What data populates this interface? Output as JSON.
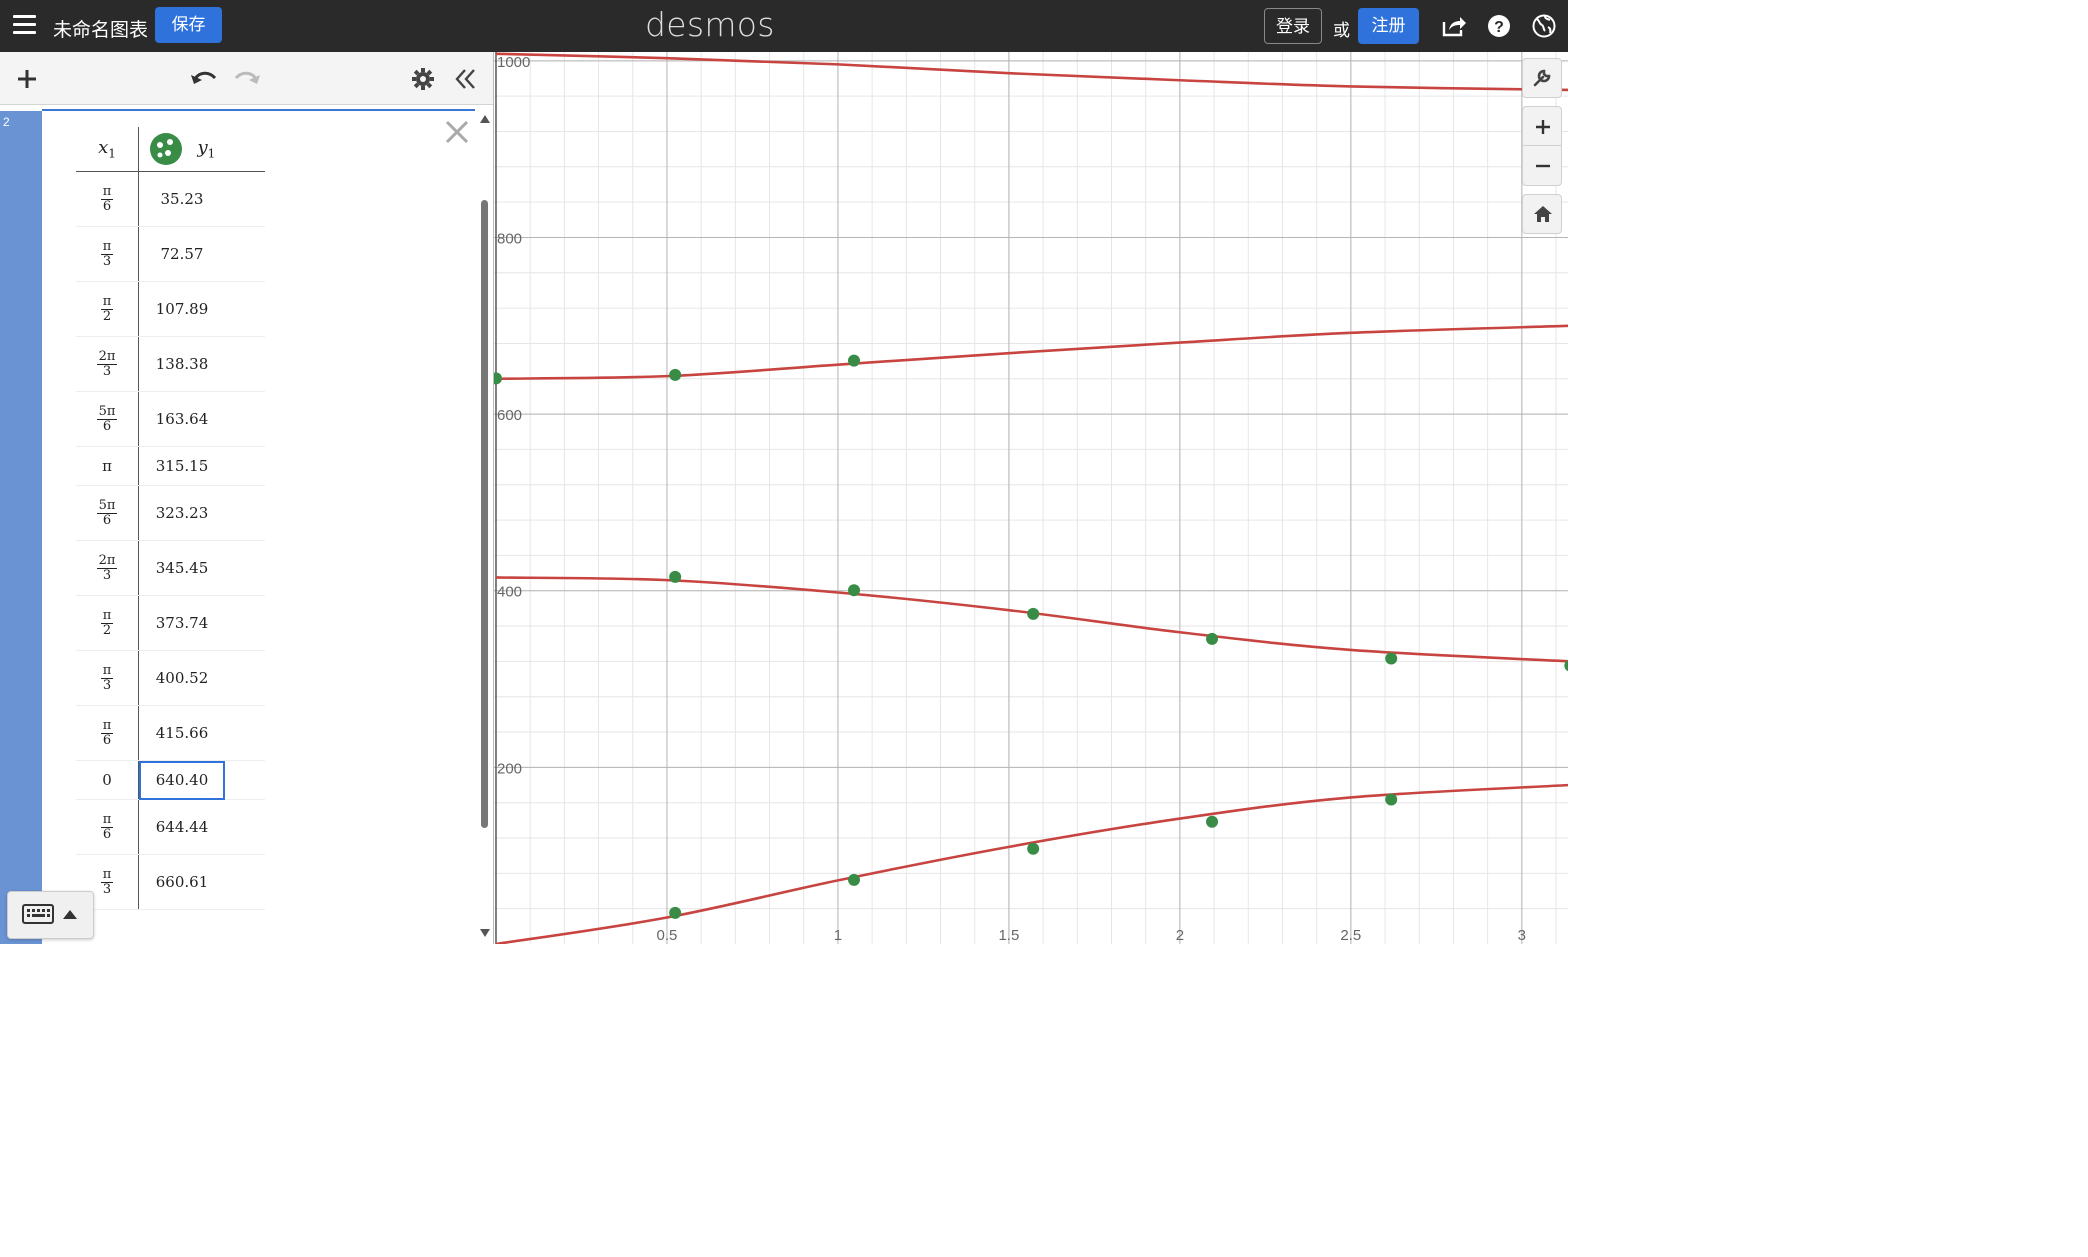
{
  "header": {
    "graph_title": "未命名图表",
    "save_label": "保存",
    "logo": "desmos",
    "login_label": "登录",
    "or_text": "或",
    "signup_label": "注册",
    "icons": [
      "menu-icon",
      "share-icon",
      "help-icon",
      "language-globe-icon"
    ]
  },
  "toolbar": {
    "icons": [
      "add-icon",
      "undo-icon",
      "redo-icon",
      "settings-gear-icon",
      "collapse-panel-icon"
    ]
  },
  "expression": {
    "index": "2",
    "table": {
      "header_x": "x",
      "header_x_sub": "1",
      "header_y": "y",
      "header_y_sub": "1",
      "rows": [
        {
          "x_num": "π",
          "x_den": "6",
          "y": "35.23"
        },
        {
          "x_num": "π",
          "x_den": "3",
          "y": "72.57"
        },
        {
          "x_num": "π",
          "x_den": "2",
          "y": "107.89"
        },
        {
          "x_num": "2π",
          "x_den": "3",
          "y": "138.38"
        },
        {
          "x_num": "5π",
          "x_den": "6",
          "y": "163.64"
        },
        {
          "x_plain": "π",
          "y": "315.15"
        },
        {
          "x_num": "5π",
          "x_den": "6",
          "y": "323.23"
        },
        {
          "x_num": "2π",
          "x_den": "3",
          "y": "345.45"
        },
        {
          "x_num": "π",
          "x_den": "2",
          "y": "373.74"
        },
        {
          "x_num": "π",
          "x_den": "3",
          "y": "400.52"
        },
        {
          "x_num": "π",
          "x_den": "6",
          "y": "415.66"
        },
        {
          "x_plain": "0",
          "y": "640.40",
          "selected": true
        },
        {
          "x_num": "π",
          "x_den": "6",
          "y": "644.44"
        },
        {
          "x_num": "π",
          "x_den": "3",
          "y": "660.61"
        }
      ]
    }
  },
  "colors": {
    "topbar": "#2a2a2a",
    "accent_blue": "#2f72dc",
    "curve_red": "#c74440",
    "point_green": "#388c46",
    "gutter_blue": "#6a93d4"
  },
  "graph": {
    "x_ticks": [
      "0.5",
      "1",
      "1.5",
      "2",
      "2.5",
      "3"
    ],
    "y_ticks": [
      "1000",
      "800",
      "600",
      "400",
      "200"
    ],
    "x_range": [
      -0.5,
      3.14
    ],
    "y_range": [
      0,
      1000
    ],
    "controls": [
      "wrench-icon",
      "zoom-in-icon",
      "zoom-out-icon",
      "home-icon"
    ]
  },
  "chart_data": {
    "type": "scatter",
    "xlabel": "",
    "ylabel": "",
    "xlim": [
      0,
      3.14
    ],
    "ylim": [
      0,
      1000
    ],
    "grid": true,
    "points": [
      [
        0,
        640.4
      ],
      [
        0.524,
        644.44
      ],
      [
        1.047,
        660.61
      ],
      [
        0.524,
        415.66
      ],
      [
        1.047,
        400.52
      ],
      [
        1.571,
        373.74
      ],
      [
        2.094,
        345.45
      ],
      [
        2.618,
        323.23
      ],
      [
        3.142,
        315.15
      ],
      [
        0.524,
        35.23
      ],
      [
        1.047,
        72.57
      ],
      [
        1.571,
        107.89
      ],
      [
        2.094,
        138.38
      ],
      [
        2.618,
        163.64
      ]
    ],
    "curves": [
      {
        "description": "top curve",
        "x": [
          0,
          0.5,
          1,
          1.5,
          2,
          2.5,
          3.14
        ],
        "y": [
          1008,
          1003,
          996,
          986,
          978,
          971,
          967
        ]
      },
      {
        "description": "upper-middle curve",
        "x": [
          0,
          0.5,
          1,
          1.5,
          2,
          2.5,
          3.14
        ],
        "y": [
          640,
          643,
          656,
          669,
          681,
          692,
          700
        ]
      },
      {
        "description": "lower-middle curve",
        "x": [
          0,
          0.5,
          1,
          1.5,
          2,
          2.5,
          3.14
        ],
        "y": [
          415,
          412,
          398,
          378,
          353,
          333,
          320
        ]
      },
      {
        "description": "bottom curve",
        "x": [
          0,
          0.5,
          1,
          1.5,
          2,
          2.5,
          3.14
        ],
        "y": [
          0,
          30,
          72,
          110,
          142,
          166,
          180
        ]
      }
    ]
  }
}
